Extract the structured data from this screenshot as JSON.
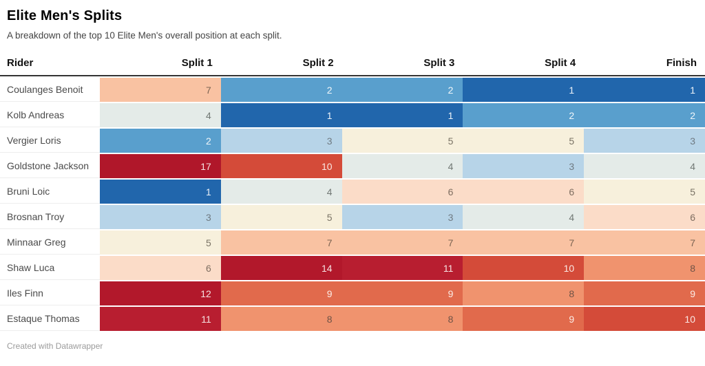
{
  "header": {
    "title": "Elite Men's Splits",
    "subtitle": "A breakdown of the top 10 Elite Men's overall position at each split."
  },
  "table": {
    "columns": [
      "Rider",
      "Split 1",
      "Split 2",
      "Split 3",
      "Split 4",
      "Finish"
    ],
    "rows": [
      {
        "rider": "Coulanges Benoit",
        "values": [
          7,
          2,
          2,
          1,
          1
        ]
      },
      {
        "rider": "Kolb Andreas",
        "values": [
          4,
          1,
          1,
          2,
          2
        ]
      },
      {
        "rider": "Vergier Loris",
        "values": [
          2,
          3,
          5,
          5,
          3
        ]
      },
      {
        "rider": "Goldstone Jackson",
        "values": [
          17,
          10,
          4,
          3,
          4
        ]
      },
      {
        "rider": "Bruni Loic",
        "values": [
          1,
          4,
          6,
          6,
          5
        ]
      },
      {
        "rider": "Brosnan Troy",
        "values": [
          3,
          5,
          3,
          4,
          6
        ]
      },
      {
        "rider": "Minnaar Greg",
        "values": [
          5,
          7,
          7,
          7,
          7
        ]
      },
      {
        "rider": "Shaw Luca",
        "values": [
          6,
          14,
          11,
          10,
          8
        ]
      },
      {
        "rider": "Iles Finn",
        "values": [
          12,
          9,
          9,
          8,
          9
        ]
      },
      {
        "rider": "Estaque Thomas",
        "values": [
          11,
          8,
          8,
          9,
          10
        ]
      }
    ]
  },
  "colors": {
    "header_rule": "#333333",
    "scale": {
      "1": {
        "bg": "#2166ac",
        "fg": "#edf3f8"
      },
      "2": {
        "bg": "#599fcd",
        "fg": "#f0f6fa"
      },
      "3": {
        "bg": "#b7d4e8",
        "fg": "#6f7a82"
      },
      "4": {
        "bg": "#e4ebe8",
        "fg": "#717874"
      },
      "5": {
        "bg": "#f7f0dc",
        "fg": "#7a7365"
      },
      "6": {
        "bg": "#fbdcc8",
        "fg": "#7d6d60"
      },
      "7": {
        "bg": "#f9c2a2",
        "fg": "#7c6452"
      },
      "8": {
        "bg": "#f0936e",
        "fg": "#6f5346"
      },
      "9": {
        "bg": "#e16a4c",
        "fg": "#fbece6"
      },
      "10": {
        "bg": "#d44b39",
        "fg": "#fae8e4"
      },
      "11": {
        "bg": "#b81e30",
        "fg": "#f6e2e2"
      },
      "12": {
        "bg": "#b2182b",
        "fg": "#f6e2e2"
      },
      "14": {
        "bg": "#b2182b",
        "fg": "#f6e2e2"
      },
      "17": {
        "bg": "#b0172a",
        "fg": "#f6e2e2"
      }
    }
  },
  "footer": {
    "credit": "Created with Datawrapper"
  },
  "chart_data": {
    "type": "heatmap",
    "title": "Elite Men's Splits",
    "subtitle": "A breakdown of the top 10 Elite Men's overall position at each split.",
    "columns": [
      "Split 1",
      "Split 2",
      "Split 3",
      "Split 4",
      "Finish"
    ],
    "rows": [
      "Coulanges Benoit",
      "Kolb Andreas",
      "Vergier Loris",
      "Goldstone Jackson",
      "Bruni Loic",
      "Brosnan Troy",
      "Minnaar Greg",
      "Shaw Luca",
      "Iles Finn",
      "Estaque Thomas"
    ],
    "values": [
      [
        7,
        2,
        2,
        1,
        1
      ],
      [
        4,
        1,
        1,
        2,
        2
      ],
      [
        2,
        3,
        5,
        5,
        3
      ],
      [
        17,
        10,
        4,
        3,
        4
      ],
      [
        1,
        4,
        6,
        6,
        5
      ],
      [
        3,
        5,
        3,
        4,
        6
      ],
      [
        5,
        7,
        7,
        7,
        7
      ],
      [
        6,
        14,
        11,
        10,
        8
      ],
      [
        12,
        9,
        9,
        8,
        9
      ],
      [
        11,
        8,
        8,
        9,
        10
      ]
    ],
    "color_scale": {
      "low_color": "#2166ac",
      "mid_color": "#f7f0dc",
      "high_color": "#b2182b",
      "domain": [
        1,
        17
      ],
      "low_is": "best position (1)",
      "legend": "none"
    }
  }
}
